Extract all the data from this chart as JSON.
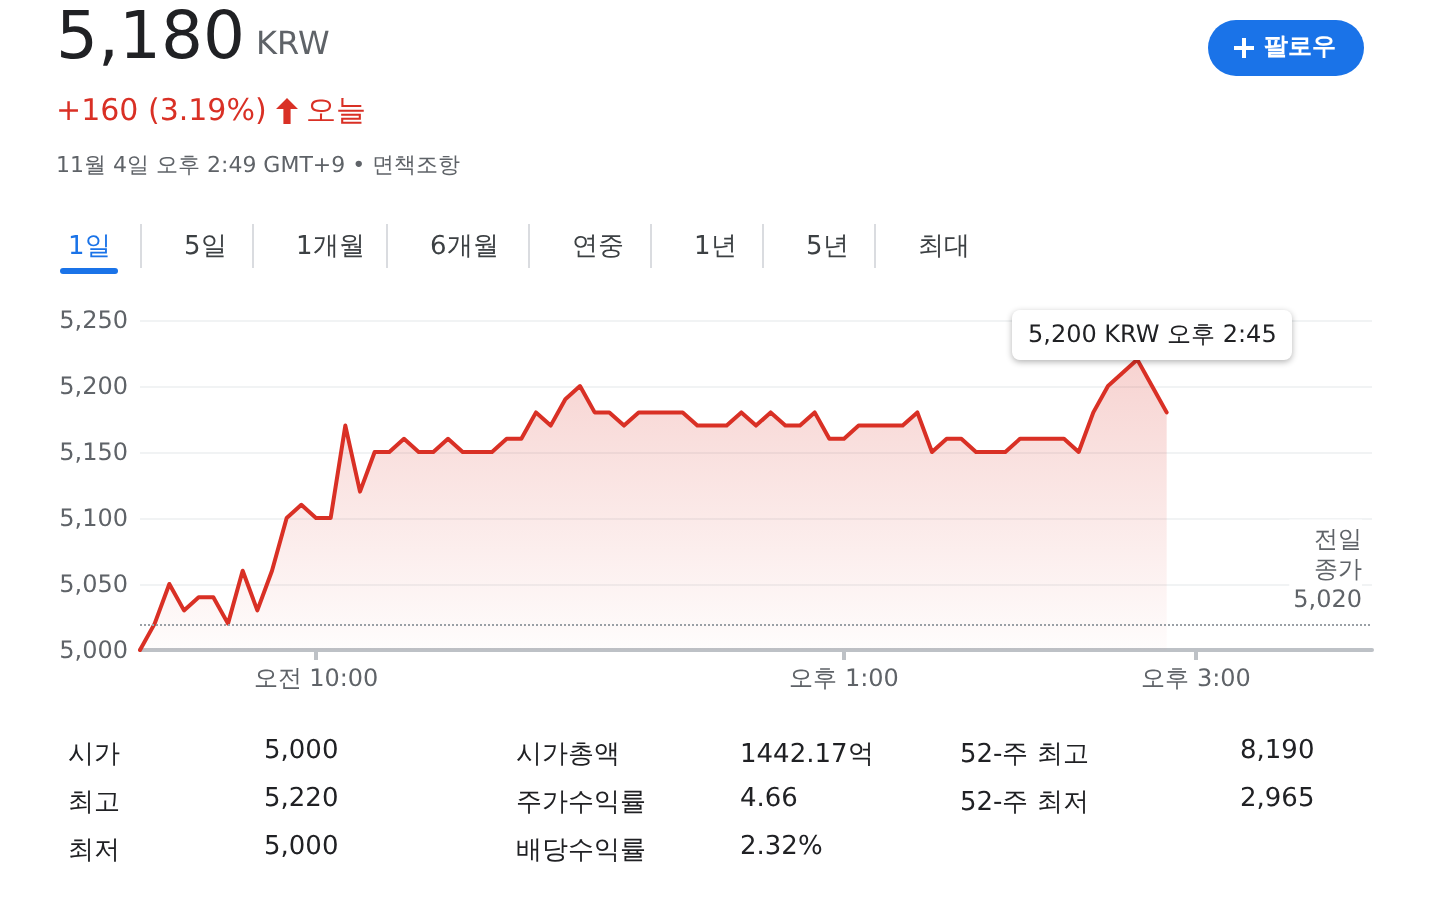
{
  "chart_data": {
    "type": "area",
    "title": "5,180",
    "subtitle": "KRW",
    "categories": [
      null,
      null,
      null,
      null,
      null,
      null,
      null,
      null,
      null,
      null,
      null,
      null,
      "오전 10:00",
      null,
      null,
      null,
      null,
      null,
      null,
      null,
      null,
      null,
      null,
      null,
      null,
      null,
      null,
      null,
      null,
      null,
      null,
      null,
      null,
      null,
      null,
      null,
      null,
      null,
      null,
      null,
      null,
      null,
      null,
      null,
      null,
      null,
      null,
      null,
      "오후 1:00",
      null,
      null,
      null,
      null,
      null,
      null,
      null,
      null,
      null,
      null,
      null,
      null,
      null,
      null,
      null,
      null,
      null,
      null,
      null,
      null,
      null,
      null,
      null,
      "오후 3:00",
      null,
      null,
      null,
      null,
      null,
      null,
      null,
      null,
      null,
      null,
      null,
      null
    ],
    "series": [
      {
        "color": "#d93025",
        "values": [
          5000,
          5020,
          5050,
          5030,
          5040,
          5040,
          5020,
          5060,
          5030,
          5060,
          5100,
          5110,
          5100,
          5100,
          5170,
          5120,
          5150,
          5150,
          5160,
          5150,
          5150,
          5160,
          5150,
          5150,
          5150,
          5160,
          5160,
          5180,
          5170,
          5190,
          5200,
          5180,
          5180,
          5170,
          5180,
          5180,
          5180,
          5180,
          5170,
          5170,
          5170,
          5180,
          5170,
          5180,
          5170,
          5170,
          5180,
          5160,
          5160,
          5170,
          5170,
          5170,
          5170,
          5180,
          5150,
          5160,
          5160,
          5150,
          5150,
          5150,
          5160,
          5160,
          5160,
          5160,
          5150,
          5180,
          5200,
          5210,
          5220,
          5200,
          5180,
          null,
          null,
          null,
          null,
          null,
          null,
          null,
          null,
          null,
          null,
          null,
          null,
          null,
          null
        ]
      }
    ],
    "ylim": [
      5000,
      5250
    ],
    "yticks": [
      {
        "value": 5000,
        "label": "5,000"
      },
      {
        "value": 5050,
        "label": "5,050"
      },
      {
        "value": 5100,
        "label": "5,100"
      },
      {
        "value": 5150,
        "label": "5,150"
      },
      {
        "value": 5200,
        "label": "5,200"
      },
      {
        "value": 5250,
        "label": "5,250"
      }
    ],
    "grid": "y",
    "marker": "none",
    "line_style": "solid",
    "ref_lines": [
      {
        "axis": "y",
        "value": 5020,
        "label": "전일 종가 5,020",
        "line_style": "dotted",
        "color": "#9aa0a6"
      }
    ],
    "annotations": [
      "+160 (3.19%)",
      "오늘",
      "11월 4일 오후 2:49 GMT+9 • 면책조항",
      "팔로우",
      "1일",
      "5일",
      "1개월",
      "6개월",
      "연중",
      "1년",
      "5년",
      "최대",
      "5,200 KRW  오후 2:45",
      "시가",
      "5,000",
      "최고",
      "5,220",
      "최저",
      "5,000",
      "시가총액",
      "1442.17억",
      "주가수익률",
      "4.66",
      "배당수익률",
      "2.32%",
      "52-주 최고",
      "8,190",
      "52-주 최저",
      "2,965"
    ]
  }
}
